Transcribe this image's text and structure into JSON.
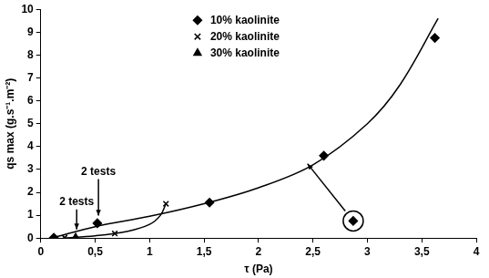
{
  "chart_data": {
    "type": "scatter",
    "x_label": "τ (Pa)",
    "y_label": "qs max (g.s⁻¹.m⁻²)",
    "xlim": [
      0,
      4
    ],
    "xticks": [
      0,
      {
        "value": 0.5,
        "label": "0,5"
      },
      1,
      {
        "value": 1.5,
        "label": "1,5"
      },
      2,
      {
        "value": 2.5,
        "label": "2,5"
      },
      3,
      {
        "value": 3.5,
        "label": "3,5"
      },
      4
    ],
    "ylim": [
      0,
      10
    ],
    "yticks": [
      0,
      1,
      2,
      3,
      4,
      5,
      6,
      7,
      8,
      9,
      10
    ],
    "grid": false,
    "legend": "top",
    "series": [
      {
        "name": "10% kaolinite",
        "type": "scatter",
        "marker": "diamond",
        "color": "#000000",
        "x": [
          0.12,
          0.52,
          1.55,
          2.6,
          2.87,
          3.62
        ],
        "values": [
          0.02,
          0.65,
          1.55,
          3.6,
          0.75,
          8.75
        ]
      },
      {
        "name": "20% kaolinite",
        "type": "scatter",
        "marker": "cross",
        "color": "#000000",
        "x": [
          0.22,
          0.68,
          1.15
        ],
        "values": [
          0.02,
          0.2,
          1.5
        ]
      },
      {
        "name": "30% kaolinite",
        "type": "scatter",
        "marker": "triangle",
        "color": "#000000",
        "x": [
          0.32
        ],
        "values": [
          0.02
        ]
      },
      {
        "type": "line",
        "line_style": "solid",
        "color": "#000000",
        "x": [
          0.1,
          0.5,
          1,
          1.5,
          2,
          2.5,
          3,
          3.3,
          3.65
        ],
        "values": [
          0,
          0.5,
          0.95,
          1.5,
          2.2,
          3.2,
          5,
          6.7,
          9.6
        ]
      },
      {
        "type": "line",
        "line_style": "solid",
        "color": "#000000",
        "x": [
          0.2,
          0.5,
          0.8,
          1,
          1.1,
          1.15
        ],
        "values": [
          0,
          0.1,
          0.3,
          0.6,
          1,
          1.5
        ]
      }
    ],
    "annotations": [
      {
        "text": "2 tests",
        "x": 0.33,
        "y": 0.3
      },
      {
        "text": "2 tests",
        "x": 0.53,
        "y": 0.9
      }
    ],
    "highlight": {
      "x": 2.87,
      "y": 0.75,
      "target_x": 2.45,
      "target_y": 3.25
    }
  }
}
